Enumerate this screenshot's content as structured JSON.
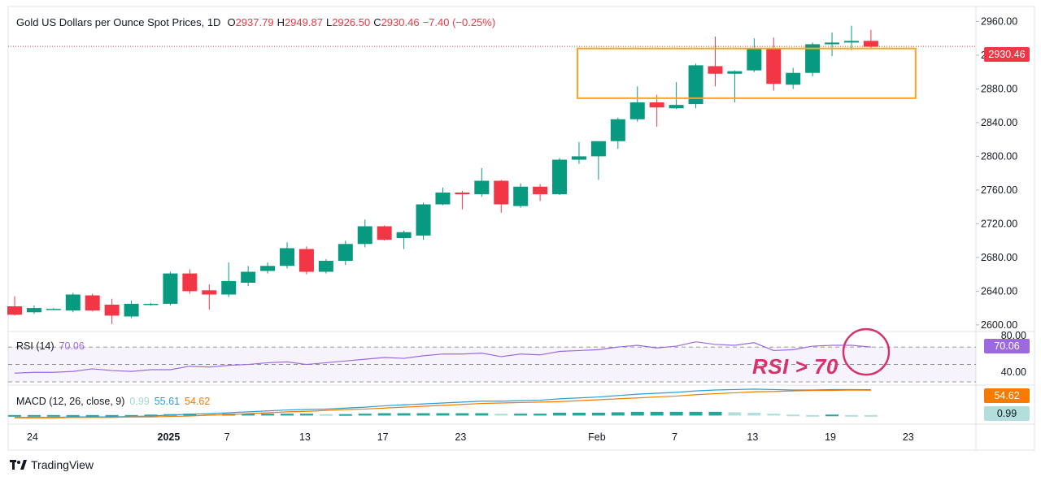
{
  "header": {
    "title": "Gold US Dollars per Ounce Spot Prices, 1D",
    "o_key": "O",
    "o_val": "2937.79",
    "h_key": "H",
    "h_val": "2949.87",
    "l_key": "L",
    "l_val": "2926.50",
    "c_key": "C",
    "c_val": "2930.46",
    "change": "−7.40 (−0.25%)"
  },
  "rsi": {
    "label": "RSI (14)",
    "value": "70.06",
    "axis_top": "80.00",
    "axis_bottom": "40.00"
  },
  "macd": {
    "label": "MACD (12, 26, close, 9)",
    "hist": "0.99",
    "macd": "55.61",
    "signal": "54.62",
    "box_signal": "54.62",
    "box_hist": "0.99"
  },
  "annotation": "RSI > 70",
  "brand": "TradingView",
  "colors": {
    "up": "#089981",
    "down": "#f23645",
    "box": "#f5a623",
    "rsi": "#9c6ade",
    "macd": "#2a9fd6",
    "signal": "#f57c00",
    "annot": "#d6336c"
  },
  "chart_data": {
    "type": "candlestick",
    "title": "Gold US Dollars per Ounce Spot Prices, 1D",
    "y_ticks": [
      "2960.00",
      "2920.00",
      "2880.00",
      "2840.00",
      "2800.00",
      "2760.00",
      "2720.00",
      "2680.00",
      "2640.00",
      "2600.00"
    ],
    "ylim": [
      2596,
      2972
    ],
    "x_ticks": [
      "24",
      "2025",
      "7",
      "13",
      "17",
      "23",
      "Feb",
      "7",
      "13",
      "19",
      "23"
    ],
    "last_price": "2930.46",
    "candles": [
      {
        "o": 2622,
        "h": 2634,
        "l": 2611,
        "c": 2612
      },
      {
        "o": 2615,
        "h": 2623,
        "l": 2613,
        "c": 2620
      },
      {
        "o": 2619,
        "h": 2620,
        "l": 2618,
        "c": 2619
      },
      {
        "o": 2617,
        "h": 2638,
        "l": 2615,
        "c": 2636
      },
      {
        "o": 2635,
        "h": 2637,
        "l": 2616,
        "c": 2617
      },
      {
        "o": 2624,
        "h": 2631,
        "l": 2601,
        "c": 2611
      },
      {
        "o": 2610,
        "h": 2629,
        "l": 2608,
        "c": 2625
      },
      {
        "o": 2624,
        "h": 2626,
        "l": 2623,
        "c": 2625
      },
      {
        "o": 2625,
        "h": 2663,
        "l": 2623,
        "c": 2661
      },
      {
        "o": 2661,
        "h": 2666,
        "l": 2637,
        "c": 2640
      },
      {
        "o": 2641,
        "h": 2648,
        "l": 2618,
        "c": 2636
      },
      {
        "o": 2636,
        "h": 2674,
        "l": 2633,
        "c": 2652
      },
      {
        "o": 2650,
        "h": 2670,
        "l": 2646,
        "c": 2663
      },
      {
        "o": 2664,
        "h": 2674,
        "l": 2661,
        "c": 2670
      },
      {
        "o": 2670,
        "h": 2698,
        "l": 2667,
        "c": 2691
      },
      {
        "o": 2690,
        "h": 2693,
        "l": 2660,
        "c": 2663
      },
      {
        "o": 2663,
        "h": 2678,
        "l": 2661,
        "c": 2676
      },
      {
        "o": 2676,
        "h": 2700,
        "l": 2671,
        "c": 2696
      },
      {
        "o": 2696,
        "h": 2725,
        "l": 2692,
        "c": 2717
      },
      {
        "o": 2717,
        "h": 2718,
        "l": 2700,
        "c": 2701
      },
      {
        "o": 2703,
        "h": 2712,
        "l": 2690,
        "c": 2710
      },
      {
        "o": 2706,
        "h": 2745,
        "l": 2701,
        "c": 2743
      },
      {
        "o": 2743,
        "h": 2763,
        "l": 2742,
        "c": 2757
      },
      {
        "o": 2757,
        "h": 2759,
        "l": 2737,
        "c": 2755
      },
      {
        "o": 2755,
        "h": 2786,
        "l": 2752,
        "c": 2771
      },
      {
        "o": 2771,
        "h": 2772,
        "l": 2733,
        "c": 2743
      },
      {
        "o": 2741,
        "h": 2768,
        "l": 2739,
        "c": 2764
      },
      {
        "o": 2764,
        "h": 2767,
        "l": 2747,
        "c": 2755
      },
      {
        "o": 2755,
        "h": 2798,
        "l": 2754,
        "c": 2796
      },
      {
        "o": 2796,
        "h": 2817,
        "l": 2791,
        "c": 2800
      },
      {
        "o": 2800,
        "h": 2818,
        "l": 2772,
        "c": 2818
      },
      {
        "o": 2818,
        "h": 2846,
        "l": 2809,
        "c": 2844
      },
      {
        "o": 2844,
        "h": 2883,
        "l": 2841,
        "c": 2864
      },
      {
        "o": 2864,
        "h": 2873,
        "l": 2835,
        "c": 2858
      },
      {
        "o": 2857,
        "h": 2888,
        "l": 2856,
        "c": 2861
      },
      {
        "o": 2862,
        "h": 2910,
        "l": 2857,
        "c": 2908
      },
      {
        "o": 2907,
        "h": 2942,
        "l": 2883,
        "c": 2898
      },
      {
        "o": 2898,
        "h": 2902,
        "l": 2864,
        "c": 2901
      },
      {
        "o": 2902,
        "h": 2940,
        "l": 2900,
        "c": 2928
      },
      {
        "o": 2928,
        "h": 2941,
        "l": 2878,
        "c": 2886
      },
      {
        "o": 2885,
        "h": 2905,
        "l": 2880,
        "c": 2899
      },
      {
        "o": 2899,
        "h": 2935,
        "l": 2895,
        "c": 2933
      },
      {
        "o": 2933,
        "h": 2947,
        "l": 2919,
        "c": 2935
      },
      {
        "o": 2935,
        "h": 2955,
        "l": 2926,
        "c": 2937
      },
      {
        "o": 2937,
        "h": 2950,
        "l": 2927,
        "c": 2930
      }
    ],
    "rsi_values": [
      40,
      41,
      41,
      42,
      45,
      43,
      42,
      44,
      44,
      48,
      47,
      49,
      50,
      52,
      53,
      50,
      52,
      54,
      56,
      58,
      57,
      60,
      62,
      62,
      63,
      59,
      62,
      61,
      65,
      66,
      67,
      70,
      72,
      69,
      71,
      76,
      73,
      72,
      75,
      66,
      67,
      71,
      72,
      72,
      70
    ],
    "rsi_ylim": [
      30,
      86
    ],
    "macd_line": [
      -4,
      -4,
      -4,
      -3,
      -3,
      -3,
      -2,
      -1,
      1,
      3,
      4,
      6,
      8,
      10,
      12,
      13,
      14,
      16,
      18,
      21,
      23,
      25,
      27,
      29,
      31,
      31,
      32,
      33,
      36,
      38,
      40,
      43,
      46,
      48,
      50,
      53,
      55,
      56,
      57,
      56,
      55,
      55,
      56,
      56,
      55.61
    ],
    "signal_line": [
      -5,
      -5,
      -5,
      -4,
      -4,
      -4,
      -3,
      -3,
      -2,
      -1,
      1,
      2,
      4,
      6,
      8,
      9,
      11,
      13,
      14,
      16,
      18,
      20,
      22,
      24,
      26,
      27,
      28,
      29,
      30,
      32,
      34,
      36,
      38,
      40,
      42,
      45,
      47,
      49,
      51,
      52,
      53,
      54,
      54,
      55,
      54.62
    ],
    "macd_ylim": [
      -8,
      62
    ]
  }
}
